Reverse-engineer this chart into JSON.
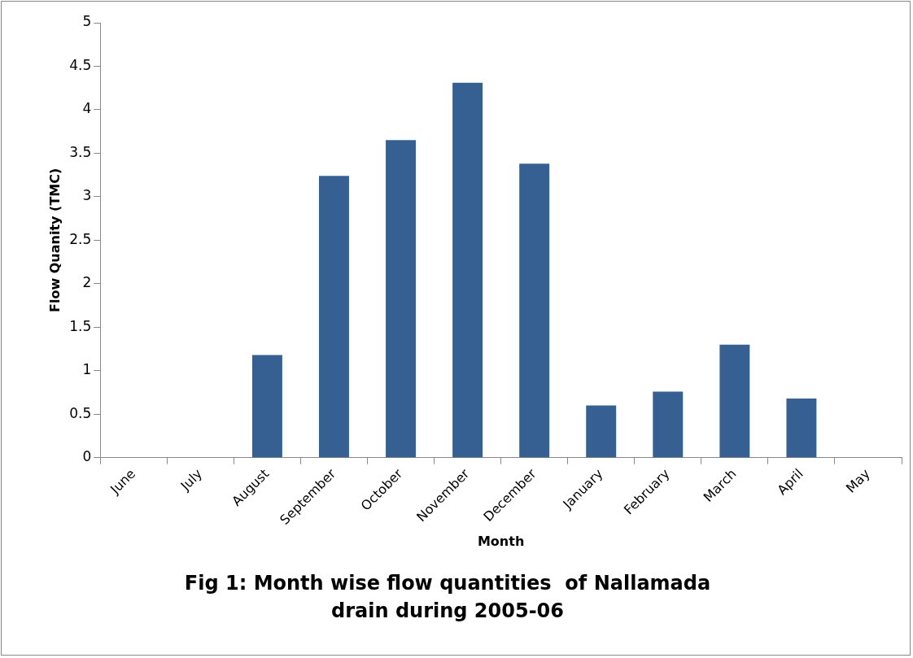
{
  "chart_data": {
    "type": "bar",
    "title": "Fig 1: Month wise flow quantities  of Nallamada  drain during 2005-06",
    "xlabel": "Month",
    "ylabel": "Flow Quanity (TMC)",
    "categories": [
      "June",
      "July",
      "August",
      "September",
      "October",
      "November",
      "December",
      "January",
      "February",
      "March",
      "April",
      "May"
    ],
    "values": [
      0,
      0,
      1.18,
      3.24,
      3.65,
      4.31,
      3.38,
      0.6,
      0.76,
      1.3,
      0.68,
      0
    ],
    "color": "#376092",
    "ylim": [
      0,
      5
    ],
    "yticks": [
      0,
      0.5,
      1,
      1.5,
      2,
      2.5,
      3,
      3.5,
      4,
      4.5,
      5
    ],
    "grid": false,
    "legend": false
  }
}
